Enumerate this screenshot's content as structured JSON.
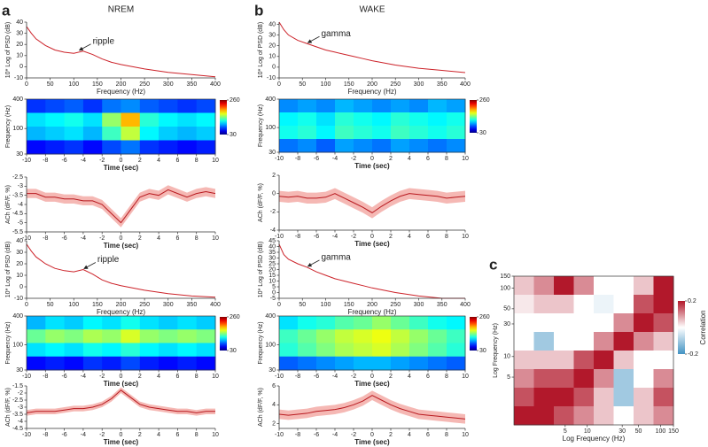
{
  "chart_data": [
    {
      "type": "line",
      "panel": "a",
      "title": "NREM",
      "xlabel": "Frequency (Hz)",
      "ylabel": "10* Log of PSD (dB)",
      "x": [
        0,
        10,
        20,
        40,
        60,
        80,
        100,
        120,
        140,
        160,
        180,
        200,
        250,
        300,
        350,
        400
      ],
      "series": [
        {
          "color": "#cc2229",
          "values": [
            36,
            30,
            25,
            19,
            15,
            13,
            12,
            14,
            11,
            7,
            4,
            2,
            -2,
            -5,
            -7,
            -9
          ]
        }
      ],
      "xlim": [
        0,
        400
      ],
      "ylim": [
        -10,
        40
      ],
      "xticks": [
        0,
        50,
        100,
        150,
        200,
        250,
        300,
        350,
        400
      ],
      "yticks": [
        -10,
        0,
        10,
        20,
        30,
        40
      ],
      "annotation": {
        "text": "ripple",
        "x": 110,
        "y": 14
      }
    },
    {
      "type": "heatmap",
      "xlabel": "Time (sec)",
      "ylabel": "Frequency (Hz)",
      "xlim": [
        -10,
        10
      ],
      "ylim": [
        30,
        400
      ],
      "ylog": true,
      "xticks": [
        -10,
        -8,
        -6,
        -4,
        -2,
        0,
        2,
        4,
        6,
        8,
        10
      ],
      "yticks": [
        30,
        100,
        400
      ],
      "colormap": "jet",
      "clim": [
        30,
        260
      ],
      "cticks": [
        30,
        260
      ],
      "z": [
        [
          70,
          75,
          80,
          70,
          85,
          90,
          80,
          75,
          70,
          75
        ],
        [
          110,
          115,
          120,
          110,
          150,
          190,
          125,
          115,
          110,
          115
        ],
        [
          100,
          105,
          110,
          100,
          130,
          160,
          115,
          105,
          100,
          105
        ],
        [
          60,
          65,
          70,
          60,
          75,
          85,
          70,
          65,
          60,
          65
        ]
      ]
    },
    {
      "type": "line",
      "xlabel": "Time (sec)",
      "ylabel": "ACh (dF/F, %)",
      "x": [
        -10,
        -9,
        -8,
        -7,
        -6,
        -5,
        -4,
        -3,
        -2,
        -1,
        0,
        1,
        2,
        3,
        4,
        5,
        6,
        7,
        8,
        9,
        10
      ],
      "series": [
        {
          "color": "#b8191f",
          "band_color": "#f5b8b4",
          "values": [
            -3.4,
            -3.4,
            -3.6,
            -3.6,
            -3.7,
            -3.7,
            -3.8,
            -3.8,
            -4.0,
            -4.5,
            -5.0,
            -4.3,
            -3.6,
            -3.4,
            -3.5,
            -3.2,
            -3.4,
            -3.6,
            -3.4,
            -3.3,
            -3.4
          ],
          "error": [
            0.25,
            0.25,
            0.25,
            0.25,
            0.25,
            0.25,
            0.25,
            0.25,
            0.25,
            0.25,
            0.25,
            0.25,
            0.25,
            0.25,
            0.25,
            0.25,
            0.25,
            0.25,
            0.25,
            0.25,
            0.25
          ]
        }
      ],
      "xlim": [
        -10,
        10
      ],
      "ylim": [
        -5.5,
        -2.5
      ],
      "xticks": [
        -10,
        -8,
        -6,
        -4,
        -2,
        0,
        2,
        4,
        6,
        8,
        10
      ],
      "yticks": [
        -5.5,
        -5,
        -4.5,
        -4,
        -3.5,
        -3,
        -2.5
      ]
    },
    {
      "type": "line",
      "panel": "b",
      "title": "WAKE",
      "xlabel": "Frequency (Hz)",
      "ylabel": "10* Log of PSD (dB)",
      "x": [
        0,
        10,
        20,
        40,
        60,
        80,
        100,
        120,
        140,
        160,
        180,
        200,
        250,
        300,
        350,
        400
      ],
      "series": [
        {
          "color": "#cc2229",
          "values": [
            42,
            35,
            30,
            25,
            22,
            19,
            16,
            14,
            12,
            10,
            8,
            6,
            2,
            -1,
            -3,
            -5
          ]
        }
      ],
      "xlim": [
        0,
        400
      ],
      "ylim": [
        -10,
        42
      ],
      "xticks": [
        0,
        50,
        100,
        150,
        200,
        250,
        300,
        350,
        400
      ],
      "yticks": [
        -10,
        0,
        10,
        20,
        30,
        40
      ],
      "annotation": {
        "text": "gamma",
        "x": 60,
        "y": 22
      }
    },
    {
      "type": "heatmap",
      "xlabel": "Time (sec)",
      "ylabel": "Frequency (Hz)",
      "xlim": [
        -10,
        10
      ],
      "ylim": [
        30,
        400
      ],
      "ylog": true,
      "xticks": [
        -10,
        -8,
        -6,
        -4,
        -2,
        0,
        2,
        4,
        6,
        8,
        10
      ],
      "yticks": [
        30,
        100,
        400
      ],
      "colormap": "jet",
      "clim": [
        30,
        260
      ],
      "cticks": [
        30,
        260
      ],
      "z": [
        [
          90,
          95,
          90,
          100,
          95,
          90,
          95,
          90,
          100,
          95
        ],
        [
          115,
          120,
          110,
          125,
          120,
          115,
          125,
          120,
          115,
          120
        ],
        [
          120,
          125,
          115,
          130,
          125,
          120,
          130,
          125,
          120,
          125
        ],
        [
          85,
          90,
          80,
          95,
          90,
          85,
          95,
          90,
          85,
          90
        ]
      ]
    },
    {
      "type": "line",
      "xlabel": "Time (sec)",
      "ylabel": "ACh (dF/F, %)",
      "x": [
        -10,
        -9,
        -8,
        -7,
        -6,
        -5,
        -4,
        -3,
        -2,
        -1,
        0,
        1,
        2,
        3,
        4,
        5,
        6,
        7,
        8,
        9,
        10
      ],
      "series": [
        {
          "color": "#b8191f",
          "band_color": "#f5b8b4",
          "values": [
            -0.3,
            -0.4,
            -0.3,
            -0.5,
            -0.5,
            -0.4,
            0.0,
            -0.5,
            -1.0,
            -1.5,
            -2.1,
            -1.4,
            -0.8,
            -0.3,
            0.0,
            -0.1,
            -0.2,
            -0.3,
            -0.5,
            -0.4,
            -0.3
          ],
          "error": [
            0.6,
            0.6,
            0.6,
            0.6,
            0.6,
            0.6,
            0.6,
            0.6,
            0.6,
            0.6,
            0.6,
            0.6,
            0.6,
            0.6,
            0.6,
            0.6,
            0.6,
            0.6,
            0.6,
            0.6,
            0.6
          ]
        }
      ],
      "xlim": [
        -10,
        10
      ],
      "ylim": [
        -4,
        2
      ],
      "xticks": [
        -10,
        -8,
        -6,
        -4,
        -2,
        0,
        2,
        4,
        6,
        8,
        10
      ],
      "yticks": [
        -4,
        -2,
        0,
        2
      ]
    },
    {
      "type": "line",
      "xlabel": "Frequency (Hz)",
      "ylabel": "10* Log of PSD (dB)",
      "x": [
        0,
        10,
        20,
        40,
        60,
        80,
        100,
        120,
        140,
        160,
        180,
        200,
        250,
        300,
        350,
        400
      ],
      "series": [
        {
          "color": "#cc2229",
          "values": [
            37,
            31,
            26,
            20,
            16,
            14,
            13,
            15,
            11,
            6,
            3,
            1,
            -3,
            -6,
            -8,
            -9
          ]
        }
      ],
      "xlim": [
        0,
        400
      ],
      "ylim": [
        -10,
        40
      ],
      "xticks": [
        0,
        50,
        100,
        150,
        200,
        250,
        300,
        350,
        400
      ],
      "yticks": [
        -10,
        0,
        10,
        20,
        30,
        40
      ],
      "annotation": {
        "text": "ripple",
        "x": 120,
        "y": 15
      }
    },
    {
      "type": "heatmap",
      "xlabel": "Time (sec)",
      "ylabel": "Frequency (Hz)",
      "xlim": [
        -10,
        10
      ],
      "ylim": [
        30,
        400
      ],
      "ylog": true,
      "xticks": [
        -10,
        -8,
        -6,
        -4,
        -2,
        0,
        2,
        4,
        6,
        8,
        10
      ],
      "yticks": [
        30,
        100,
        400
      ],
      "colormap": "jet",
      "clim": [
        30,
        260
      ],
      "cticks": [
        30,
        260
      ],
      "z": [
        [
          100,
          110,
          105,
          115,
          110,
          120,
          110,
          105,
          110,
          105
        ],
        [
          140,
          150,
          145,
          155,
          150,
          165,
          150,
          145,
          150,
          145
        ],
        [
          110,
          115,
          110,
          120,
          115,
          125,
          115,
          110,
          115,
          110
        ],
        [
          60,
          65,
          60,
          70,
          65,
          75,
          65,
          60,
          65,
          60
        ]
      ]
    },
    {
      "type": "line",
      "xlabel": "Time (sec)",
      "ylabel": "ACh (dF/F, %)",
      "x": [
        -10,
        -9,
        -8,
        -7,
        -6,
        -5,
        -4,
        -3,
        -2,
        -1,
        0,
        1,
        2,
        3,
        4,
        5,
        6,
        7,
        8,
        9,
        10
      ],
      "series": [
        {
          "color": "#b8191f",
          "band_color": "#f5b8b4",
          "values": [
            -3.4,
            -3.3,
            -3.3,
            -3.3,
            -3.2,
            -3.1,
            -3.1,
            -3.0,
            -2.8,
            -2.4,
            -1.8,
            -2.3,
            -2.8,
            -3.0,
            -3.1,
            -3.2,
            -3.3,
            -3.3,
            -3.4,
            -3.3,
            -3.3
          ],
          "error": [
            0.2,
            0.2,
            0.2,
            0.2,
            0.2,
            0.2,
            0.2,
            0.2,
            0.2,
            0.2,
            0.2,
            0.2,
            0.2,
            0.2,
            0.2,
            0.2,
            0.2,
            0.2,
            0.2,
            0.2,
            0.2
          ]
        }
      ],
      "xlim": [
        -10,
        10
      ],
      "ylim": [
        -4.5,
        -1.5
      ],
      "xticks": [
        -10,
        -8,
        -6,
        -4,
        -2,
        0,
        2,
        4,
        6,
        8,
        10
      ],
      "yticks": [
        -4.5,
        -4,
        -3.5,
        -3,
        -2.5,
        -2,
        -1.5
      ]
    },
    {
      "type": "line",
      "xlabel": "Frequency (Hz)",
      "ylabel": "10* Log of PSD (dB)",
      "x": [
        0,
        10,
        20,
        40,
        60,
        80,
        100,
        120,
        140,
        160,
        180,
        200,
        250,
        300,
        350,
        400
      ],
      "series": [
        {
          "color": "#cc2229",
          "values": [
            42,
            33,
            29,
            25,
            22,
            18,
            15,
            12,
            10,
            8,
            6,
            4,
            0,
            -3,
            -5,
            -5
          ]
        }
      ],
      "xlim": [
        0,
        400
      ],
      "ylim": [
        -5,
        45
      ],
      "xticks": [
        0,
        50,
        100,
        150,
        200,
        250,
        300,
        350,
        400
      ],
      "yticks": [
        -5,
        0,
        5,
        10,
        15,
        20,
        25,
        30,
        35,
        40,
        45
      ],
      "annotation": {
        "text": "gamma",
        "x": 60,
        "y": 22
      }
    },
    {
      "type": "heatmap",
      "xlabel": "Time (sec)",
      "ylabel": "Frequency (Hz)",
      "xlim": [
        -10,
        10
      ],
      "ylim": [
        30,
        400
      ],
      "ylog": true,
      "xticks": [
        -10,
        -8,
        -6,
        -4,
        -2,
        0,
        2,
        4,
        6,
        8,
        10
      ],
      "yticks": [
        30,
        100,
        400
      ],
      "colormap": "jet",
      "clim": [
        30,
        260
      ],
      "cticks": [
        30,
        260
      ],
      "z": [
        [
          110,
          120,
          125,
          135,
          140,
          150,
          140,
          130,
          120,
          115
        ],
        [
          130,
          140,
          150,
          160,
          165,
          170,
          160,
          150,
          140,
          130
        ],
        [
          125,
          135,
          145,
          155,
          160,
          165,
          155,
          145,
          135,
          125
        ],
        [
          80,
          85,
          90,
          95,
          100,
          100,
          95,
          90,
          85,
          80
        ]
      ]
    },
    {
      "type": "line",
      "xlabel": "Time (sec)",
      "ylabel": "ACh (dF/F, %)",
      "x": [
        -10,
        -9,
        -8,
        -7,
        -6,
        -5,
        -4,
        -3,
        -2,
        -1,
        0,
        1,
        2,
        3,
        4,
        5,
        6,
        7,
        8,
        9,
        10
      ],
      "series": [
        {
          "color": "#b8191f",
          "band_color": "#f5b8b4",
          "values": [
            3.0,
            2.9,
            3.0,
            3.1,
            3.3,
            3.4,
            3.5,
            3.7,
            4.0,
            4.4,
            5.0,
            4.5,
            4.0,
            3.6,
            3.3,
            3.0,
            2.9,
            2.8,
            2.7,
            2.6,
            2.5
          ],
          "error": [
            0.5,
            0.5,
            0.5,
            0.5,
            0.5,
            0.5,
            0.5,
            0.5,
            0.5,
            0.5,
            0.5,
            0.5,
            0.5,
            0.5,
            0.5,
            0.5,
            0.5,
            0.5,
            0.5,
            0.5,
            0.5
          ]
        }
      ],
      "xlim": [
        -10,
        10
      ],
      "ylim": [
        1.5,
        6
      ],
      "xticks": [
        -10,
        -8,
        -6,
        -4,
        -2,
        0,
        2,
        4,
        6,
        8,
        10
      ],
      "yticks": [
        2,
        4,
        6
      ]
    },
    {
      "type": "heatmap",
      "panel": "c",
      "xlabel": "Log Frequency (Hz)",
      "ylabel": "Log Frequency (Hz)",
      "xlim": [
        1,
        150
      ],
      "ylim": [
        1,
        150
      ],
      "xlog": true,
      "ylog": true,
      "xticks": [
        5,
        10,
        30,
        50,
        100,
        150
      ],
      "yticks": [
        5,
        10,
        30,
        50,
        100,
        150
      ],
      "colormap": "diverging",
      "clim": [
        -0.2,
        0.2
      ],
      "cticks": [
        -0.2,
        0.2
      ],
      "colorbar_label": "Correlation",
      "z": [
        [
          0.05,
          0.1,
          0.2,
          0.1,
          0,
          0,
          0.05,
          0.2
        ],
        [
          0.02,
          0.05,
          0.05,
          0,
          -0.02,
          0,
          0.15,
          0.2
        ],
        [
          0,
          0,
          0,
          0,
          0,
          0.1,
          0.2,
          0.15
        ],
        [
          0,
          -0.1,
          0,
          0,
          0.1,
          0.2,
          0.1,
          0.05
        ],
        [
          0.05,
          0.05,
          0.05,
          0.15,
          0.2,
          0.05,
          0,
          0
        ],
        [
          0.1,
          0.15,
          0.15,
          0.2,
          0.1,
          -0.1,
          0,
          0.1
        ],
        [
          0.15,
          0.2,
          0.2,
          0.15,
          0.05,
          -0.1,
          0.05,
          0.15
        ],
        [
          0.2,
          0.2,
          0.15,
          0.1,
          0.05,
          0,
          0.05,
          0.1
        ]
      ]
    }
  ]
}
